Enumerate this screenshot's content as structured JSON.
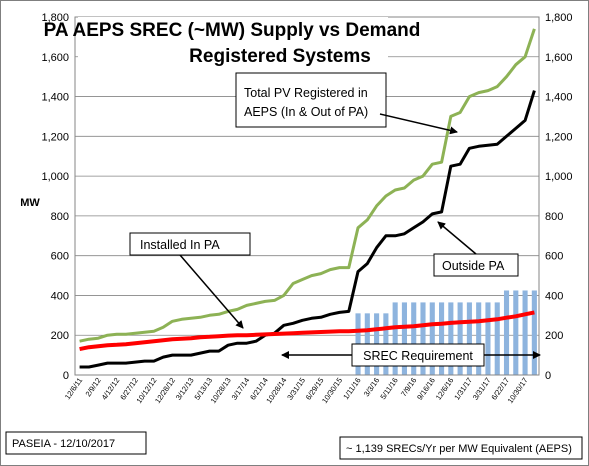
{
  "chart_data": {
    "type": "line",
    "title_line1": "PA AEPS SREC (~MW) Supply vs Demand",
    "title_line2": "Registered Systems",
    "ylabel": "MW",
    "ylim": [
      0,
      1800
    ],
    "yticks": [
      "0",
      "200",
      "400",
      "600",
      "800",
      "1,000",
      "1,200",
      "1,400",
      "1,600",
      "1,800"
    ],
    "ytick_values": [
      0,
      200,
      400,
      600,
      800,
      1000,
      1200,
      1400,
      1600,
      1800
    ],
    "x_labels": [
      "12/6/11",
      "2/9/12",
      "4/12/12",
      "6/27/12",
      "10/12/12",
      "12/28/12",
      "3/12/13",
      "5/13/13",
      "10/28/13",
      "3/17/14",
      "6/21/14",
      "10/28/14",
      "3/31/15",
      "6/29/15",
      "10/30/15",
      "1/11/16",
      "3/3/16",
      "5/11/16",
      "7/9/16",
      "9/16/16",
      "12/6/16",
      "1/31/17",
      "3/31/17",
      "6/22/17",
      "10/30/17"
    ],
    "n_points": 50,
    "label_every": 2,
    "grid": true,
    "series": [
      {
        "key": "total",
        "color": "#8db255",
        "values": [
          170,
          180,
          185,
          200,
          205,
          205,
          210,
          215,
          220,
          240,
          270,
          280,
          285,
          290,
          300,
          305,
          320,
          330,
          350,
          360,
          370,
          375,
          400,
          460,
          480,
          500,
          510,
          530,
          540,
          540,
          740,
          780,
          850,
          900,
          930,
          940,
          980,
          1000,
          1060,
          1070,
          1300,
          1320,
          1400,
          1420,
          1430,
          1450,
          1500,
          1560,
          1600,
          1740
        ]
      },
      {
        "key": "outside",
        "color": "#000000",
        "values": [
          40,
          40,
          50,
          60,
          60,
          60,
          65,
          70,
          70,
          90,
          100,
          100,
          100,
          110,
          120,
          120,
          150,
          160,
          160,
          170,
          200,
          210,
          250,
          260,
          275,
          285,
          290,
          305,
          315,
          320,
          520,
          560,
          640,
          700,
          700,
          710,
          740,
          770,
          810,
          820,
          1050,
          1060,
          1140,
          1150,
          1155,
          1160,
          1200,
          1240,
          1280,
          1430
        ]
      },
      {
        "key": "installed_pa",
        "color": "#ff0000",
        "values": [
          130,
          140,
          145,
          150,
          152,
          155,
          160,
          165,
          170,
          175,
          180,
          182,
          185,
          190,
          192,
          195,
          198,
          200,
          200,
          202,
          204,
          206,
          208,
          210,
          212,
          214,
          216,
          218,
          220,
          220,
          222,
          225,
          230,
          235,
          240,
          243,
          245,
          250,
          255,
          258,
          262,
          265,
          268,
          270,
          275,
          280,
          288,
          295,
          305,
          315
        ]
      }
    ],
    "bars": {
      "color": "#8eb4de",
      "values": [
        0,
        0,
        0,
        0,
        0,
        0,
        0,
        0,
        0,
        0,
        0,
        0,
        0,
        0,
        0,
        0,
        0,
        0,
        0,
        0,
        0,
        0,
        0,
        0,
        0,
        0,
        0,
        0,
        0,
        0,
        310,
        310,
        310,
        310,
        365,
        365,
        365,
        365,
        365,
        365,
        365,
        365,
        365,
        365,
        365,
        365,
        425,
        425,
        425,
        425
      ]
    },
    "annotations": {
      "total_pv": [
        "Total PV Registered in",
        "AEPS (In & Out of PA)"
      ],
      "installed_pa": "Installed In PA",
      "outside_pa": "Outside PA",
      "srec_req": "SREC Requirement"
    },
    "footer_left": "PASEIA - 12/10/2017",
    "footer_right": "~ 1,139 SRECs/Yr  per MW Equivalent (AEPS)"
  }
}
